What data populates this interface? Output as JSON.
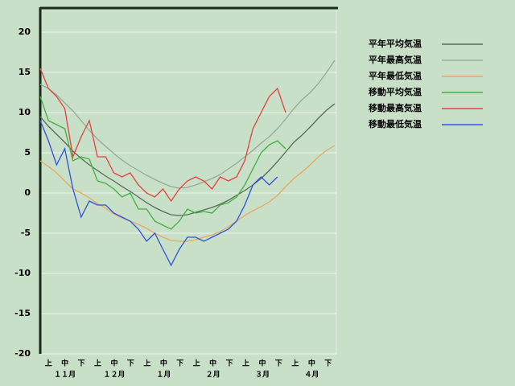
{
  "chart_data": {
    "type": "line",
    "x": [
      0,
      5,
      10,
      15,
      20,
      25,
      30,
      35,
      40,
      45,
      50,
      55,
      60,
      65,
      70,
      75,
      80,
      85,
      90,
      95,
      100,
      105,
      110,
      115,
      120,
      125,
      130,
      135,
      140,
      145,
      150,
      155,
      160,
      165,
      170,
      175,
      180
    ],
    "xlim": [
      0,
      181
    ],
    "ylim": [
      -20,
      23
    ],
    "yticks": [
      -20,
      -15,
      -10,
      -5,
      0,
      5,
      10,
      15,
      20
    ],
    "grid": true,
    "legend": "right",
    "dekad_labels": [
      "上",
      "中",
      "下",
      "上",
      "中",
      "下",
      "上",
      "中",
      "下",
      "上",
      "中",
      "下",
      "上",
      "中",
      "下",
      "上",
      "中",
      "下"
    ],
    "month_labels": [
      "１１月",
      "１２月",
      "１月",
      "２月",
      "３月",
      "４月"
    ],
    "series": [
      {
        "name": "平年平均気温",
        "color": "#566b56",
        "values": [
          9.5,
          8.3,
          7.3,
          6.3,
          5.2,
          4.3,
          3.5,
          2.8,
          2.1,
          1.5,
          0.8,
          0.2,
          -0.5,
          -1.2,
          -1.8,
          -2.3,
          -2.7,
          -2.8,
          -2.7,
          -2.4,
          -2.1,
          -1.8,
          -1.4,
          -0.9,
          -0.3,
          0.3,
          1.0,
          1.8,
          2.8,
          3.9,
          5.1,
          6.3,
          7.2,
          8.2,
          9.3,
          10.3,
          11.1
        ]
      },
      {
        "name": "平年最高気温",
        "color": "#98a898",
        "values": [
          13.5,
          13.0,
          12.2,
          11.2,
          10.2,
          9.0,
          7.8,
          6.7,
          5.8,
          4.9,
          4.1,
          3.4,
          2.8,
          2.2,
          1.7,
          1.2,
          0.8,
          0.6,
          0.7,
          1.0,
          1.4,
          1.8,
          2.3,
          3.0,
          3.7,
          4.5,
          5.3,
          6.2,
          7.0,
          8.0,
          9.2,
          10.5,
          11.6,
          12.5,
          13.6,
          15.0,
          16.5
        ]
      },
      {
        "name": "平年最低気温",
        "color": "#e8a860",
        "values": [
          4,
          3.3,
          2.5,
          1.5,
          0.5,
          0,
          -0.6,
          -1.3,
          -1.9,
          -2.6,
          -3.1,
          -3.5,
          -3.9,
          -4.4,
          -5.0,
          -5.5,
          -5.9,
          -6.0,
          -6.0,
          -5.8,
          -5.5,
          -5.2,
          -4.8,
          -4.2,
          -3.5,
          -2.8,
          -2.2,
          -1.7,
          -1.1,
          -0.3,
          0.8,
          1.8,
          2.6,
          3.5,
          4.5,
          5.3,
          5.9
        ]
      },
      {
        "name": "移動平均気温",
        "color": "#40b040",
        "values": [
          12,
          9,
          8.5,
          8,
          4,
          4.5,
          4.2,
          1.5,
          1.2,
          0.5,
          -0.5,
          0,
          -2,
          -2,
          -3.5,
          -4,
          -4.5,
          -3.5,
          -2,
          -2.5,
          -2.3,
          -2.5,
          -1.5,
          -1.2,
          -0.5,
          1,
          3,
          5,
          6,
          6.5,
          5.5,
          null,
          null,
          null,
          null,
          null,
          null
        ]
      },
      {
        "name": "移動最高気温",
        "color": "#e84040",
        "values": [
          15.5,
          13,
          12,
          10.5,
          4.5,
          7,
          9,
          4.5,
          4.5,
          2.5,
          2,
          2.5,
          1,
          0,
          -0.5,
          0.5,
          -1,
          0.5,
          1.5,
          2,
          1.5,
          0.5,
          2,
          1.5,
          2,
          4,
          8,
          10,
          12,
          13,
          10,
          null,
          null,
          null,
          null,
          null,
          null
        ]
      },
      {
        "name": "移動最低気温",
        "color": "#3050e0",
        "values": [
          9,
          6.5,
          3.5,
          5.5,
          0.5,
          -3,
          -1,
          -1.5,
          -1.5,
          -2.5,
          -3,
          -3.5,
          -4.5,
          -6,
          -5,
          -7,
          -9,
          -7,
          -5.5,
          -5.5,
          -6,
          -5.5,
          -5,
          -4.5,
          -3.5,
          -1.5,
          1,
          2,
          1,
          2,
          null,
          null,
          null,
          null,
          null,
          null,
          null
        ]
      }
    ]
  }
}
